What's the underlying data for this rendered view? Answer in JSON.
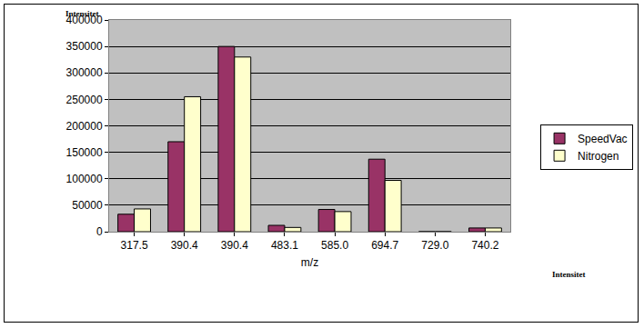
{
  "chart_data": {
    "type": "bar",
    "xlabel": "m/z",
    "ylabel": "Intensitet",
    "annotations": [
      "Intensitet"
    ],
    "categories": [
      "317.5",
      "390.4",
      "390.4",
      "483.1",
      "585.0",
      "694.7",
      "729.0",
      "740.2"
    ],
    "series": [
      {
        "name": "SpeedVac",
        "color": "#993366",
        "values": [
          33000,
          170000,
          350000,
          12000,
          42000,
          137000,
          0,
          7000
        ]
      },
      {
        "name": "Nitrogen",
        "color": "#ffffcc",
        "values": [
          43000,
          255000,
          330000,
          8000,
          38000,
          97000,
          0,
          7000
        ]
      }
    ],
    "ylim": [
      0,
      400000
    ],
    "yticks": [
      0,
      50000,
      100000,
      150000,
      200000,
      250000,
      300000,
      350000,
      400000
    ],
    "grid": true,
    "legend": "right"
  }
}
